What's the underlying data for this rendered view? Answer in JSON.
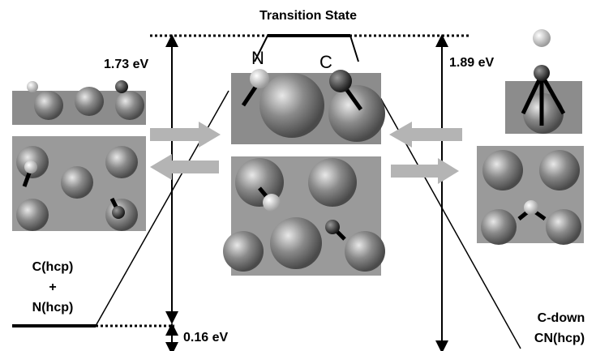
{
  "title": "Transition State",
  "atoms": {
    "n": "N",
    "c": "C"
  },
  "barriers": {
    "forward": "1.73 eV",
    "reverse": "1.89 eV",
    "reaction": "0.16 eV"
  },
  "initial_state": {
    "line1": "C(hcp)",
    "line2": "+",
    "line3": "N(hcp)"
  },
  "final_state": {
    "line1": "C-down",
    "line2": "CN(hcp)"
  }
}
